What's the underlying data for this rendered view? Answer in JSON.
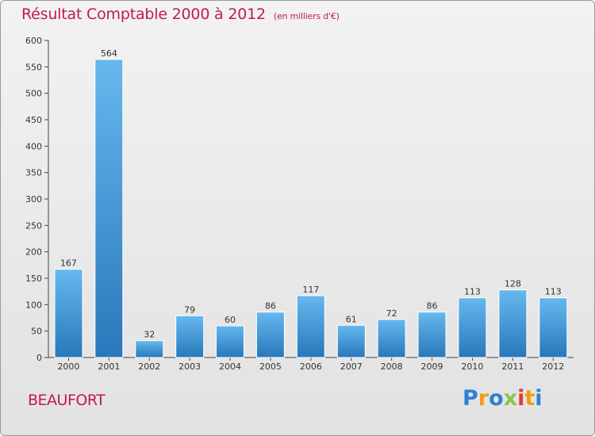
{
  "header": {
    "title": "Résultat Comptable 2000 à 2012",
    "subtitle": "(en milliers d'€)"
  },
  "footer": {
    "commune": "BEAUFORT",
    "logo_letters": [
      "P",
      "r",
      "o",
      "x",
      "i",
      "t",
      "i"
    ],
    "logo_colors": [
      "#2f7fd6",
      "#f39c12",
      "#2f7fd6",
      "#8bc34a",
      "#e53935",
      "#f39c12",
      "#2f7fd6"
    ]
  },
  "colors": {
    "accent": "#c2185b",
    "bar_top": "#66b8ee",
    "bar_bottom": "#2878bb"
  },
  "chart_data": {
    "type": "bar",
    "title": "Résultat Comptable 2000 à 2012",
    "subtitle": "(en milliers d'€)",
    "categories": [
      "2000",
      "2001",
      "2002",
      "2003",
      "2004",
      "2005",
      "2006",
      "2007",
      "2008",
      "2009",
      "2010",
      "2011",
      "2012"
    ],
    "values": [
      167,
      564,
      32,
      79,
      60,
      86,
      117,
      61,
      72,
      86,
      113,
      128,
      113
    ],
    "ylim": [
      0,
      600
    ],
    "yticks": [
      0,
      50,
      100,
      150,
      200,
      250,
      300,
      350,
      400,
      450,
      500,
      550,
      600
    ],
    "xlabel": "",
    "ylabel": "",
    "grid": false,
    "data_labels": true
  }
}
